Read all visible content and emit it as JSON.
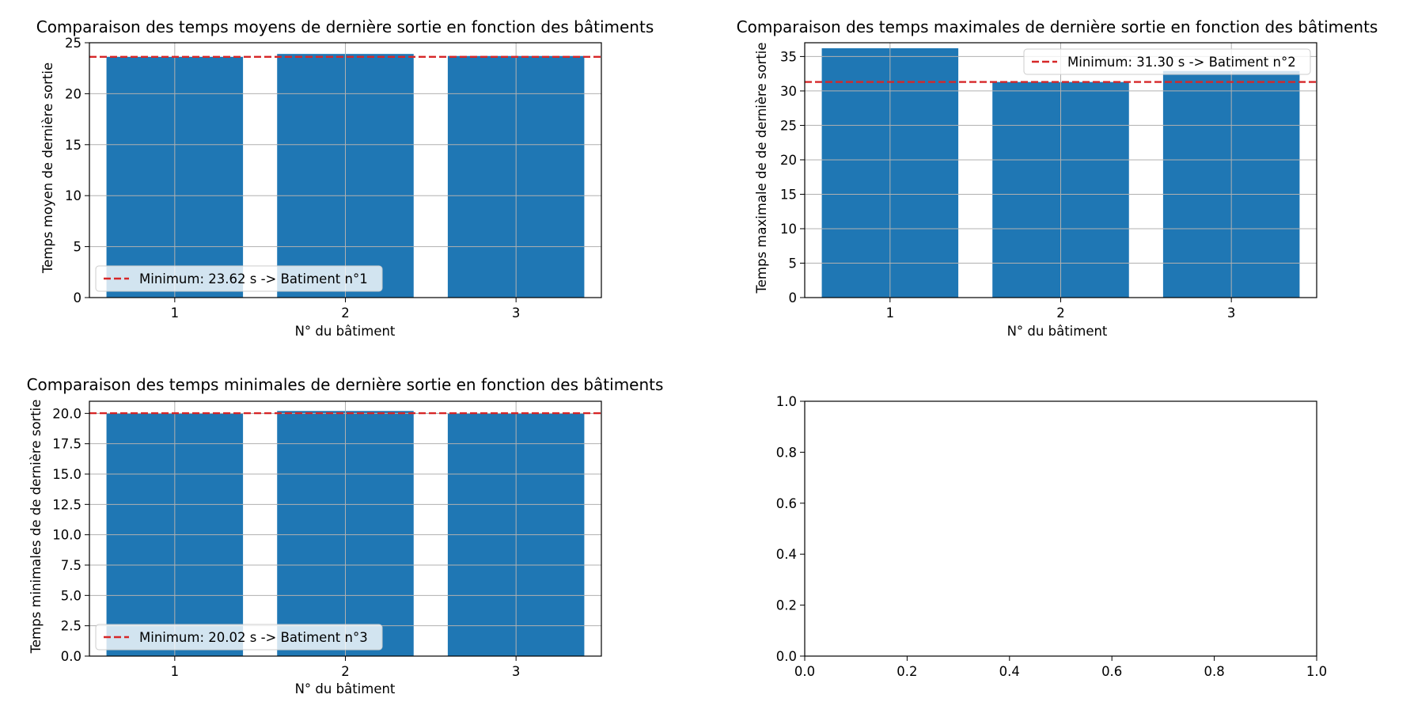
{
  "chart_data": [
    {
      "type": "bar",
      "title": "Comparaison des temps moyens de dernière sortie en fonction des bâtiments",
      "xlabel": "N° du bâtiment",
      "ylabel": "Temps moyen de dernière sortie",
      "categories": [
        "1",
        "2",
        "3"
      ],
      "values": [
        23.62,
        23.9,
        23.7
      ],
      "ylim": [
        0,
        25
      ],
      "yticks": [
        "0",
        "5",
        "10",
        "15",
        "20",
        "25"
      ],
      "grid": true,
      "bar_color": "#1f77b4",
      "reference_line": {
        "value": 23.62,
        "color": "#d62728",
        "style": "dashed",
        "label": "Minimum: 23.62 s -> Batiment n°1"
      },
      "legend_position": "lower-left"
    },
    {
      "type": "bar",
      "title": "Comparaison des temps maximales de dernière sortie en fonction des bâtiments",
      "xlabel": "N° du bâtiment",
      "ylabel": "Temps maximale de de dernière sortie",
      "categories": [
        "1",
        "2",
        "3"
      ],
      "values": [
        36.2,
        31.3,
        32.9
      ],
      "ylim": [
        0,
        37
      ],
      "yticks": [
        "0",
        "5",
        "10",
        "15",
        "20",
        "25",
        "30",
        "35"
      ],
      "grid": true,
      "bar_color": "#1f77b4",
      "reference_line": {
        "value": 31.3,
        "color": "#d62728",
        "style": "dashed",
        "label": "Minimum: 31.30 s -> Batiment n°2"
      },
      "legend_position": "upper-right"
    },
    {
      "type": "bar",
      "title": "Comparaison des temps minimales de dernière sortie en fonction des bâtiments",
      "xlabel": "N° du bâtiment",
      "ylabel": "Temps minimales de de dernière sortie",
      "categories": [
        "1",
        "2",
        "3"
      ],
      "values": [
        20.02,
        20.2,
        20.02
      ],
      "ylim": [
        0,
        21
      ],
      "yticks": [
        "0.0",
        "2.5",
        "5.0",
        "7.5",
        "10.0",
        "12.5",
        "15.0",
        "17.5",
        "20.0"
      ],
      "grid": true,
      "bar_color": "#1f77b4",
      "reference_line": {
        "value": 20.02,
        "color": "#d62728",
        "style": "dashed",
        "label": "Minimum: 20.02 s -> Batiment n°3"
      },
      "legend_position": "lower-left"
    },
    {
      "type": "empty",
      "xticks": [
        "0.0",
        "0.2",
        "0.4",
        "0.6",
        "0.8",
        "1.0"
      ],
      "yticks": [
        "0.0",
        "0.2",
        "0.4",
        "0.6",
        "0.8",
        "1.0"
      ],
      "xlim": [
        0,
        1
      ],
      "ylim": [
        0,
        1
      ]
    }
  ]
}
